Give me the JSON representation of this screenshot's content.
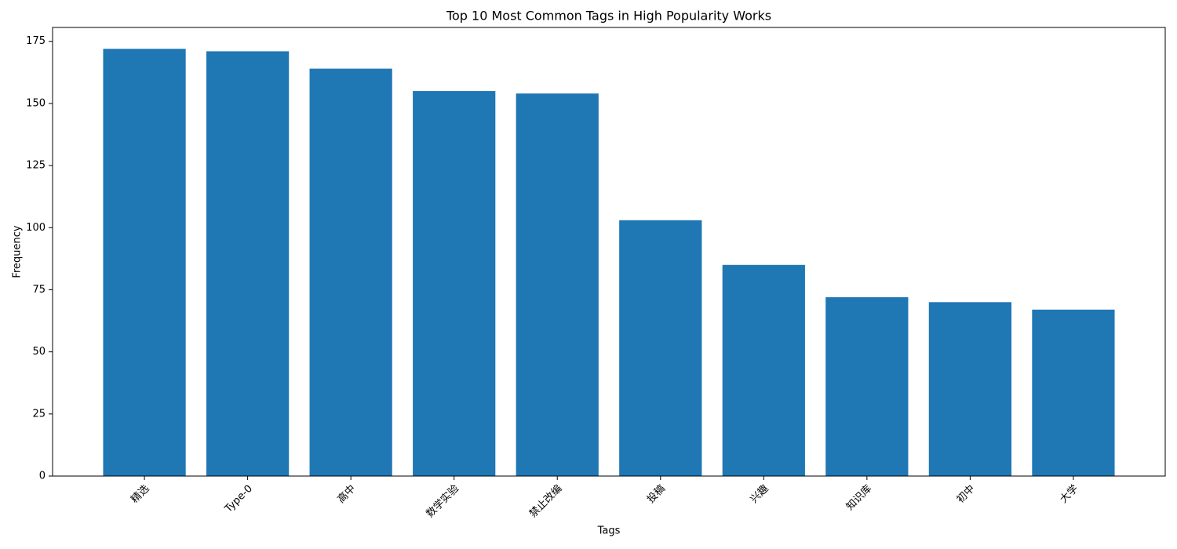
{
  "chart_data": {
    "type": "bar",
    "title": "Top 10 Most Common Tags in High Popularity Works",
    "x_label": "Tags",
    "y_label": "Frequency",
    "categories": [
      "精选",
      "Type-0",
      "高中",
      "数学实验",
      "禁止改编",
      "投稿",
      "兴趣",
      "知识库",
      "初中",
      "大学"
    ],
    "values": [
      172,
      171,
      164,
      155,
      154,
      103,
      85,
      72,
      70,
      67
    ],
    "color": "#1f77b4",
    "ylim": [
      0,
      180.6
    ],
    "yticks": [
      0,
      25,
      50,
      75,
      100,
      125,
      150,
      175
    ],
    "grid": false
  }
}
